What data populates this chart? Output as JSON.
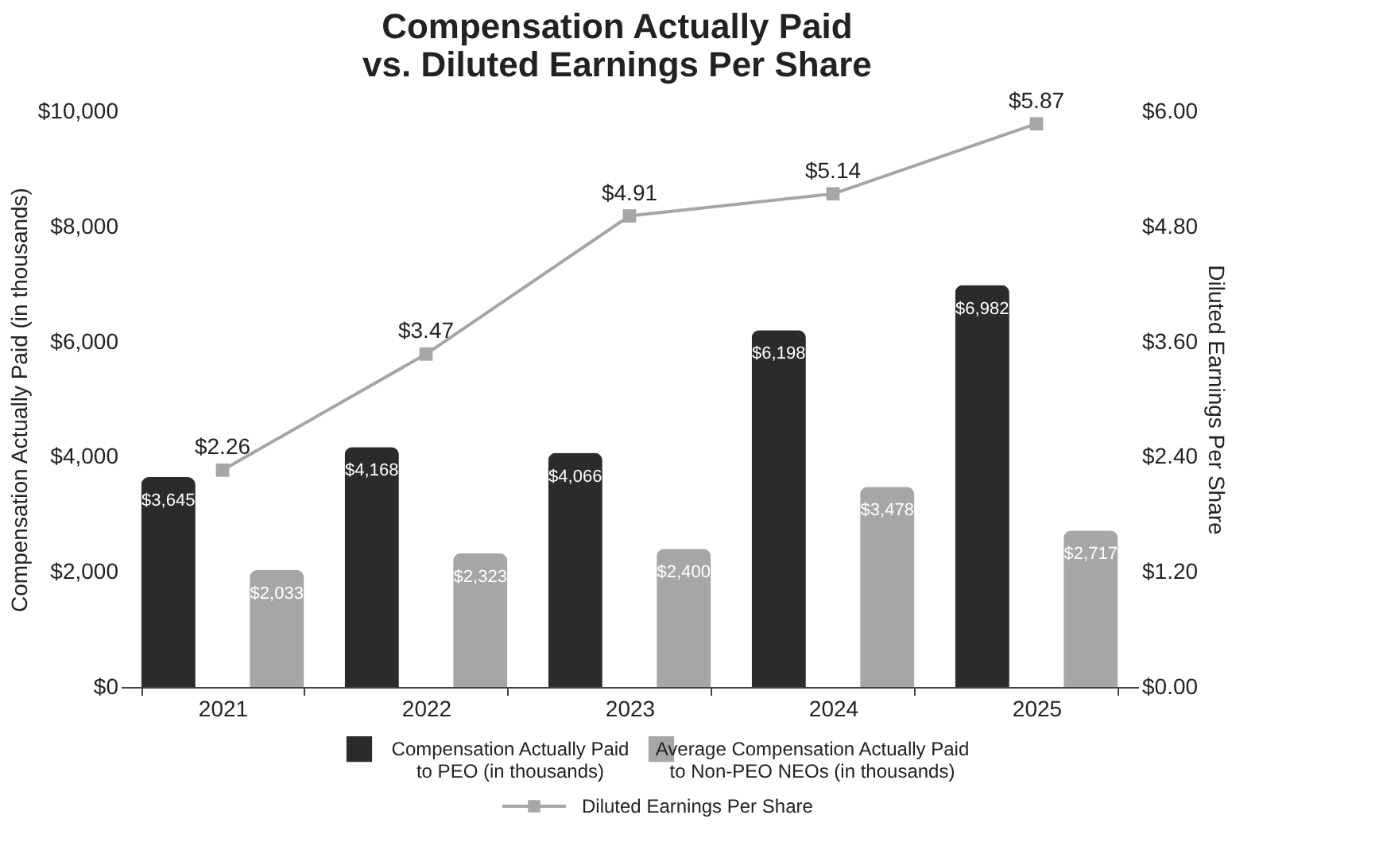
{
  "chart_data": {
    "type": "bar",
    "title": "Compensation Actually Paid\nvs. Diluted Earnings Per Share",
    "categories": [
      "2021",
      "2022",
      "2023",
      "2024",
      "2025"
    ],
    "ylabel": "Compensation Actually Paid (in thousands)",
    "y2label": "Diluted Earnings Per Share",
    "series": [
      {
        "name": "Compensation Actually Paid to PEO (in thousands)",
        "color": "#2b2b2b",
        "values": [
          3645,
          4168,
          4066,
          6198,
          6982
        ],
        "value_labels": [
          "$3,645",
          "$4,168",
          "$4,066",
          "$6,198",
          "$6,982"
        ]
      },
      {
        "name": "Average Compensation Actually Paid to Non-PEO NEOs (in thousands)",
        "color": "#a6a6a6",
        "values": [
          2033,
          2323,
          2400,
          3478,
          2717
        ],
        "value_labels": [
          "$2,033",
          "$2,323",
          "$2,400",
          "$3,478",
          "$2,717"
        ]
      },
      {
        "name": "Diluted Earnings Per Share",
        "type": "line",
        "axis": "y2",
        "color": "#a6a6a6",
        "marker": "square",
        "values": [
          2.26,
          3.47,
          4.91,
          5.14,
          5.87
        ],
        "value_labels": [
          "$2.26",
          "$3.47",
          "$4.91",
          "$5.14",
          "$5.87"
        ]
      }
    ],
    "ylim": [
      0,
      10000
    ],
    "yticks": [
      {
        "value": 0,
        "label": "$0"
      },
      {
        "value": 2000,
        "label": "$2,000"
      },
      {
        "value": 4000,
        "label": "$4,000"
      },
      {
        "value": 6000,
        "label": "$6,000"
      },
      {
        "value": 8000,
        "label": "$8,000"
      },
      {
        "value": 10000,
        "label": "$10,000"
      }
    ],
    "y2lim": [
      0,
      6
    ],
    "y2ticks": [
      {
        "value": 0,
        "label": "$0.00"
      },
      {
        "value": 1.2,
        "label": "$1.20"
      },
      {
        "value": 2.4,
        "label": "$2.40"
      },
      {
        "value": 3.6,
        "label": "$3.60"
      },
      {
        "value": 4.8,
        "label": "$4.80"
      },
      {
        "value": 6,
        "label": "$6.00"
      }
    ],
    "grid": false,
    "legend": "bottom"
  }
}
